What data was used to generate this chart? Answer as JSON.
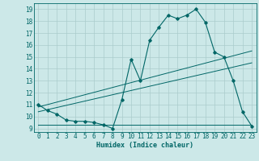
{
  "xlabel": "Humidex (Indice chaleur)",
  "bg_color": "#cce8e8",
  "grid_color": "#aacccc",
  "line_color": "#006666",
  "xlim": [
    -0.5,
    23.5
  ],
  "ylim": [
    8.7,
    19.5
  ],
  "xticks": [
    0,
    1,
    2,
    3,
    4,
    5,
    6,
    7,
    8,
    9,
    10,
    11,
    12,
    13,
    14,
    15,
    16,
    17,
    18,
    19,
    20,
    21,
    22,
    23
  ],
  "yticks": [
    9,
    10,
    11,
    12,
    13,
    14,
    15,
    16,
    17,
    18,
    19
  ],
  "main_line_x": [
    0,
    1,
    2,
    3,
    4,
    5,
    6,
    7,
    8,
    9,
    10,
    11,
    12,
    13,
    14,
    15,
    16,
    17,
    18,
    19,
    20,
    21,
    22,
    23
  ],
  "main_line_y": [
    11.0,
    10.5,
    10.2,
    9.7,
    9.6,
    9.6,
    9.5,
    9.3,
    9.0,
    11.4,
    14.8,
    13.0,
    16.4,
    17.5,
    18.5,
    18.2,
    18.5,
    19.0,
    17.9,
    15.4,
    15.0,
    13.0,
    10.4,
    9.2
  ],
  "reg_line1_x": [
    0,
    23
  ],
  "reg_line1_y": [
    10.8,
    15.5
  ],
  "reg_line2_x": [
    0,
    23
  ],
  "reg_line2_y": [
    10.4,
    14.5
  ],
  "flat_line_x": [
    0,
    23
  ],
  "flat_line_y": [
    9.3,
    9.3
  ]
}
